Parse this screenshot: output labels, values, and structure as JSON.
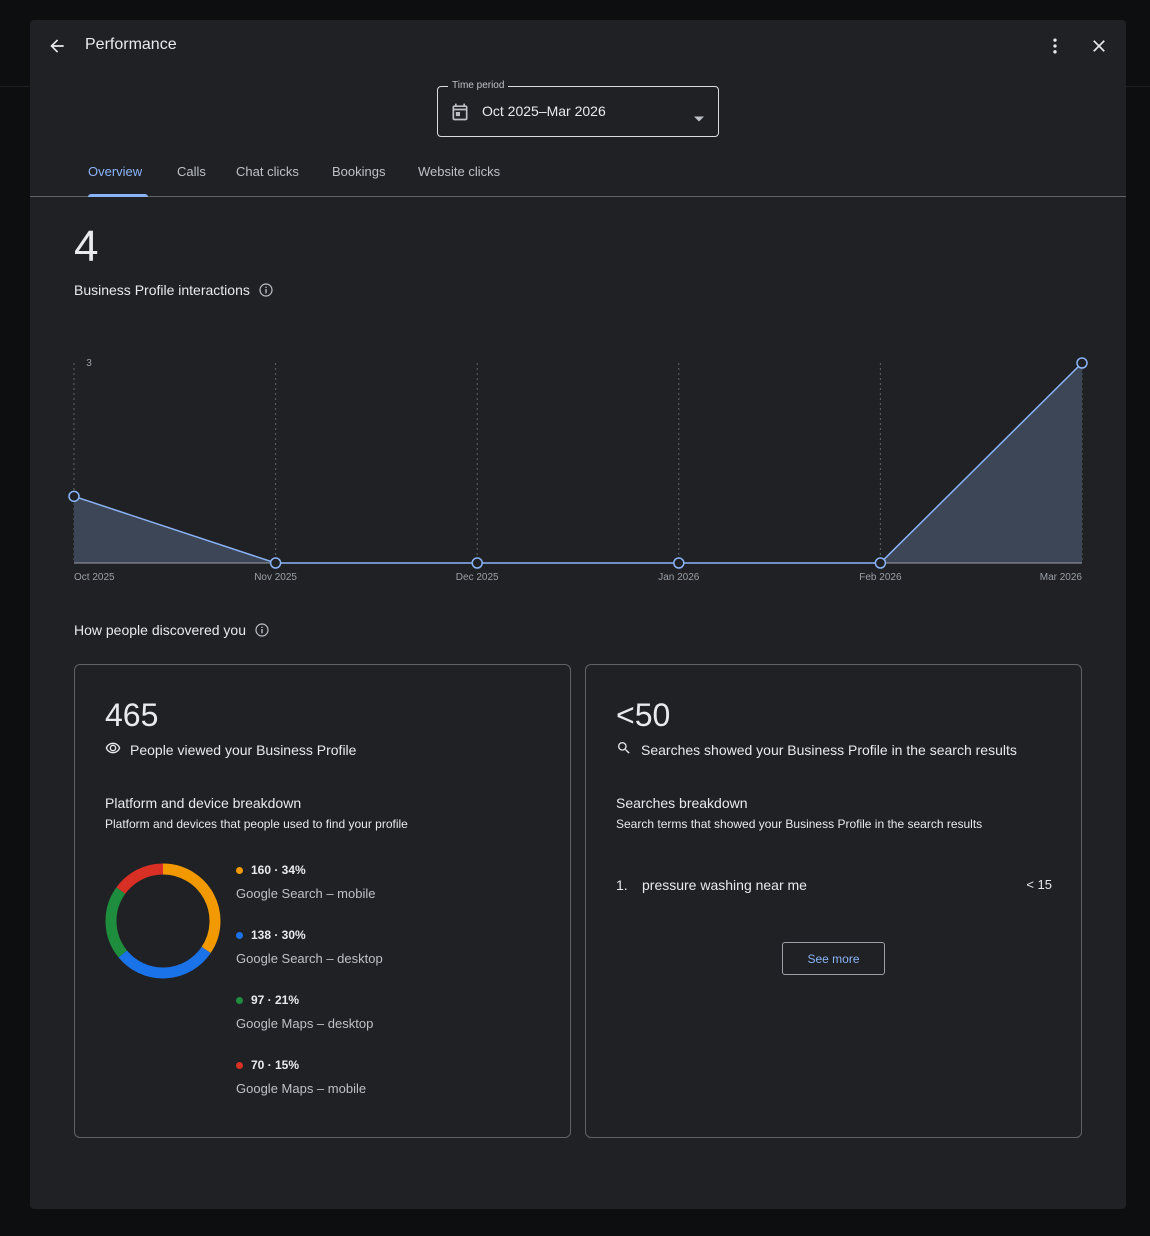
{
  "header": {
    "title": "Performance",
    "icons": {
      "back": "arrow-back-icon",
      "more": "more-vert-icon",
      "close": "close-icon"
    }
  },
  "time_period": {
    "label": "Time period",
    "value": "Oct 2025–Mar 2026",
    "icon": "calendar-icon"
  },
  "tabs": [
    {
      "label": "Overview",
      "active": true
    },
    {
      "label": "Calls",
      "active": false
    },
    {
      "label": "Chat clicks",
      "active": false
    },
    {
      "label": "Bookings",
      "active": false
    },
    {
      "label": "Website clicks",
      "active": false
    }
  ],
  "interactions": {
    "total": "4",
    "label": "Business Profile interactions"
  },
  "chart_data": {
    "type": "area",
    "categories": [
      "Oct 2025",
      "Nov 2025",
      "Dec 2025",
      "Jan 2026",
      "Feb 2026",
      "Mar 2026"
    ],
    "values": [
      1,
      0,
      0,
      0,
      0,
      3
    ],
    "y_tick_labels": [
      "3"
    ],
    "ylim": [
      0,
      3
    ],
    "grid": "vertical-dotted",
    "color": "#8ab4f8",
    "fill": "#3c4657"
  },
  "discovery": {
    "title": "How people discovered you",
    "views": {
      "number": "465",
      "label": "People viewed your Business Profile",
      "icon": "eye-icon",
      "breakdown_title": "Platform and device breakdown",
      "breakdown_subtitle": "Platform and devices that people used to find your profile",
      "chart_data": {
        "type": "pie",
        "donut": true,
        "slices": [
          {
            "value": 160,
            "percent": 34,
            "top": "160 · 34%",
            "label": "Google Search – mobile",
            "color": "#f29900"
          },
          {
            "value": 138,
            "percent": 30,
            "top": "138 · 30%",
            "label": "Google Search – desktop",
            "color": "#1a73e8"
          },
          {
            "value": 97,
            "percent": 21,
            "top": "97 · 21%",
            "label": "Google Maps – desktop",
            "color": "#1e8e3e"
          },
          {
            "value": 70,
            "percent": 15,
            "top": "70 · 15%",
            "label": "Google Maps – mobile",
            "color": "#d93025"
          }
        ]
      }
    },
    "searches": {
      "number": "<50",
      "label": "Searches showed your Business Profile in the search results",
      "icon": "search-icon",
      "breakdown_title": "Searches breakdown",
      "breakdown_subtitle": "Search terms that showed your Business Profile in the search results",
      "terms": [
        {
          "index": "1.",
          "term": "pressure washing near me",
          "value": "< 15"
        }
      ],
      "see_more": "See more"
    }
  }
}
